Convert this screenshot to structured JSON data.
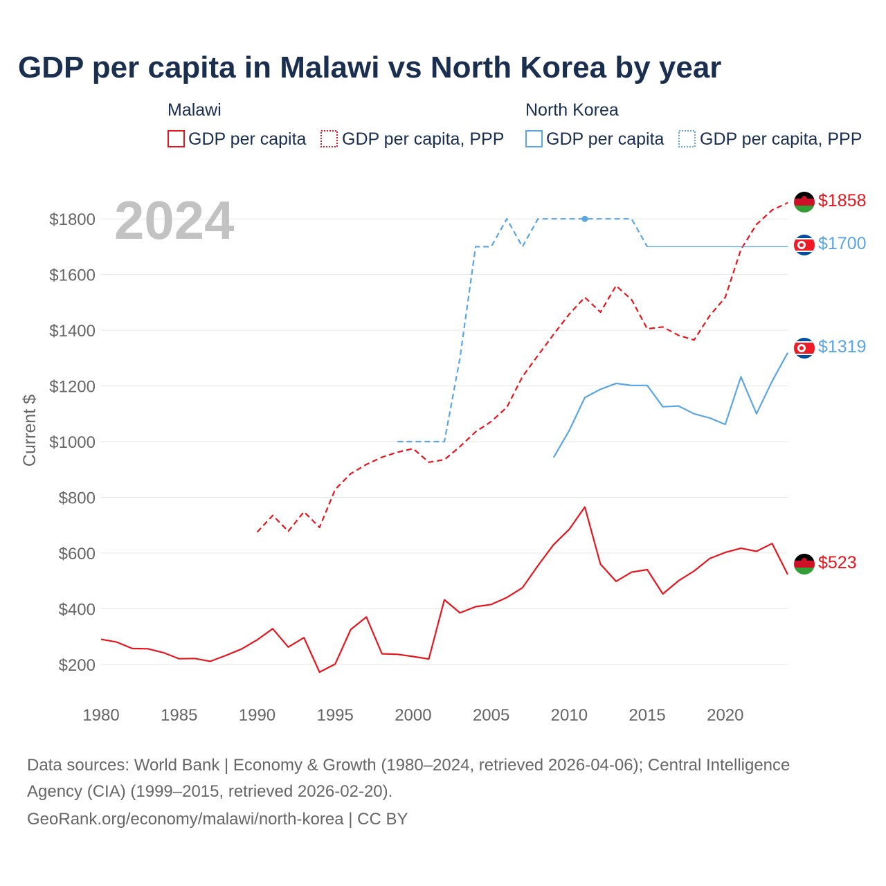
{
  "title": "GDP per capita in Malawi vs North Korea by year",
  "year_badge": "2024",
  "legend": {
    "groups": [
      {
        "name": "Malawi",
        "color": "#e8141c",
        "items": [
          "GDP per capita",
          "GDP per capita, PPP"
        ]
      },
      {
        "name": "North Korea",
        "color": "#5aa5e3",
        "items": [
          "GDP per capita",
          "GDP per capita, PPP"
        ]
      }
    ]
  },
  "end_labels": {
    "malawi_gdp": "$523",
    "malawi_ppp": "$1858",
    "nk_gdp": "$1319",
    "nk_ppp": "$1700"
  },
  "footer": {
    "line1": "Data sources: World Bank | Economy & Growth (1980–2024, retrieved 2026-04-06); Central Intelligence",
    "line2": "Agency (CIA) (1999–2015, retrieved 2026-02-20).",
    "line3": "GeoRank.org/economy/malawi/north-korea | CC BY"
  },
  "chart_data": {
    "type": "line",
    "title": "GDP per capita in Malawi vs North Korea by year",
    "xlabel": "",
    "ylabel": "Current $",
    "xlim": [
      1980,
      2024
    ],
    "ylim": [
      100,
      1900
    ],
    "xticks": [
      1980,
      1985,
      1990,
      1995,
      2000,
      2005,
      2010,
      2015,
      2020
    ],
    "yticks": [
      200,
      400,
      600,
      800,
      1000,
      1200,
      1400,
      1600,
      1800
    ],
    "ytick_labels": [
      "$200",
      "$400",
      "$600",
      "$800",
      "$1000",
      "$1200",
      "$1400",
      "$1600",
      "$1800"
    ],
    "grid": true,
    "series": [
      {
        "name": "Malawi GDP per capita",
        "color": "#e8141c",
        "dash": "solid",
        "x": [
          1980,
          1981,
          1982,
          1983,
          1984,
          1985,
          1986,
          1987,
          1988,
          1989,
          1990,
          1991,
          1992,
          1993,
          1994,
          1995,
          1996,
          1997,
          1998,
          1999,
          2000,
          2001,
          2002,
          2003,
          2004,
          2005,
          2006,
          2007,
          2008,
          2009,
          2010,
          2011,
          2012,
          2013,
          2014,
          2015,
          2016,
          2017,
          2018,
          2019,
          2020,
          2021,
          2022,
          2023,
          2024
        ],
        "values": [
          290,
          280,
          257,
          256,
          242,
          220,
          221,
          211,
          232,
          255,
          288,
          328,
          262,
          296,
          172,
          201,
          325,
          370,
          238,
          236,
          228,
          219,
          432,
          385,
          407,
          415,
          440,
          475,
          555,
          630,
          685,
          765,
          560,
          498,
          531,
          540,
          453,
          500,
          535,
          580,
          602,
          617,
          606,
          634,
          523
        ]
      },
      {
        "name": "Malawi GDP per capita, PPP",
        "color": "#e8141c",
        "dash": "dashed",
        "x": [
          1990,
          1991,
          1992,
          1993,
          1994,
          1995,
          1996,
          1997,
          1998,
          1999,
          2000,
          2001,
          2002,
          2003,
          2004,
          2005,
          2006,
          2007,
          2008,
          2009,
          2010,
          2011,
          2012,
          2013,
          2014,
          2015,
          2016,
          2017,
          2018,
          2019,
          2020,
          2021,
          2022,
          2023,
          2024
        ],
        "values": [
          675,
          735,
          678,
          748,
          692,
          828,
          885,
          918,
          944,
          962,
          975,
          926,
          935,
          982,
          1035,
          1072,
          1123,
          1233,
          1310,
          1385,
          1458,
          1518,
          1465,
          1560,
          1510,
          1405,
          1412,
          1382,
          1365,
          1452,
          1518,
          1690,
          1780,
          1832,
          1858
        ]
      },
      {
        "name": "North Korea GDP per capita",
        "color": "#5aa5e3",
        "dash": "solid",
        "x": [
          2009,
          2010,
          2011,
          2012,
          2013,
          2014,
          2015,
          2016,
          2017,
          2018,
          2019,
          2020,
          2021,
          2022,
          2023,
          2024
        ],
        "values": [
          943,
          1040,
          1158,
          1188,
          1209,
          1202,
          1202,
          1125,
          1128,
          1100,
          1085,
          1062,
          1233,
          1100,
          1217,
          1319
        ]
      },
      {
        "name": "North Korea GDP per capita, PPP",
        "color": "#5aa5e3",
        "dash": "dashed",
        "x": [
          1999,
          2000,
          2001,
          2002,
          2003,
          2004,
          2005,
          2006,
          2007,
          2008,
          2009,
          2010,
          2011,
          2012,
          2013,
          2014,
          2015
        ],
        "values": [
          1000,
          1000,
          1000,
          1000,
          1300,
          1700,
          1700,
          1800,
          1700,
          1800,
          1800,
          1800,
          1800,
          1800,
          1800,
          1800,
          1700
        ]
      },
      {
        "name": "North Korea GDP per capita, PPP (carried forward)",
        "color": "#5aa5e3",
        "dash": "thin",
        "x": [
          2015,
          2024
        ],
        "values": [
          1700,
          1700
        ]
      }
    ],
    "highlight_point": {
      "series": "North Korea GDP per capita, PPP",
      "x": 2011,
      "value": 1800
    }
  }
}
